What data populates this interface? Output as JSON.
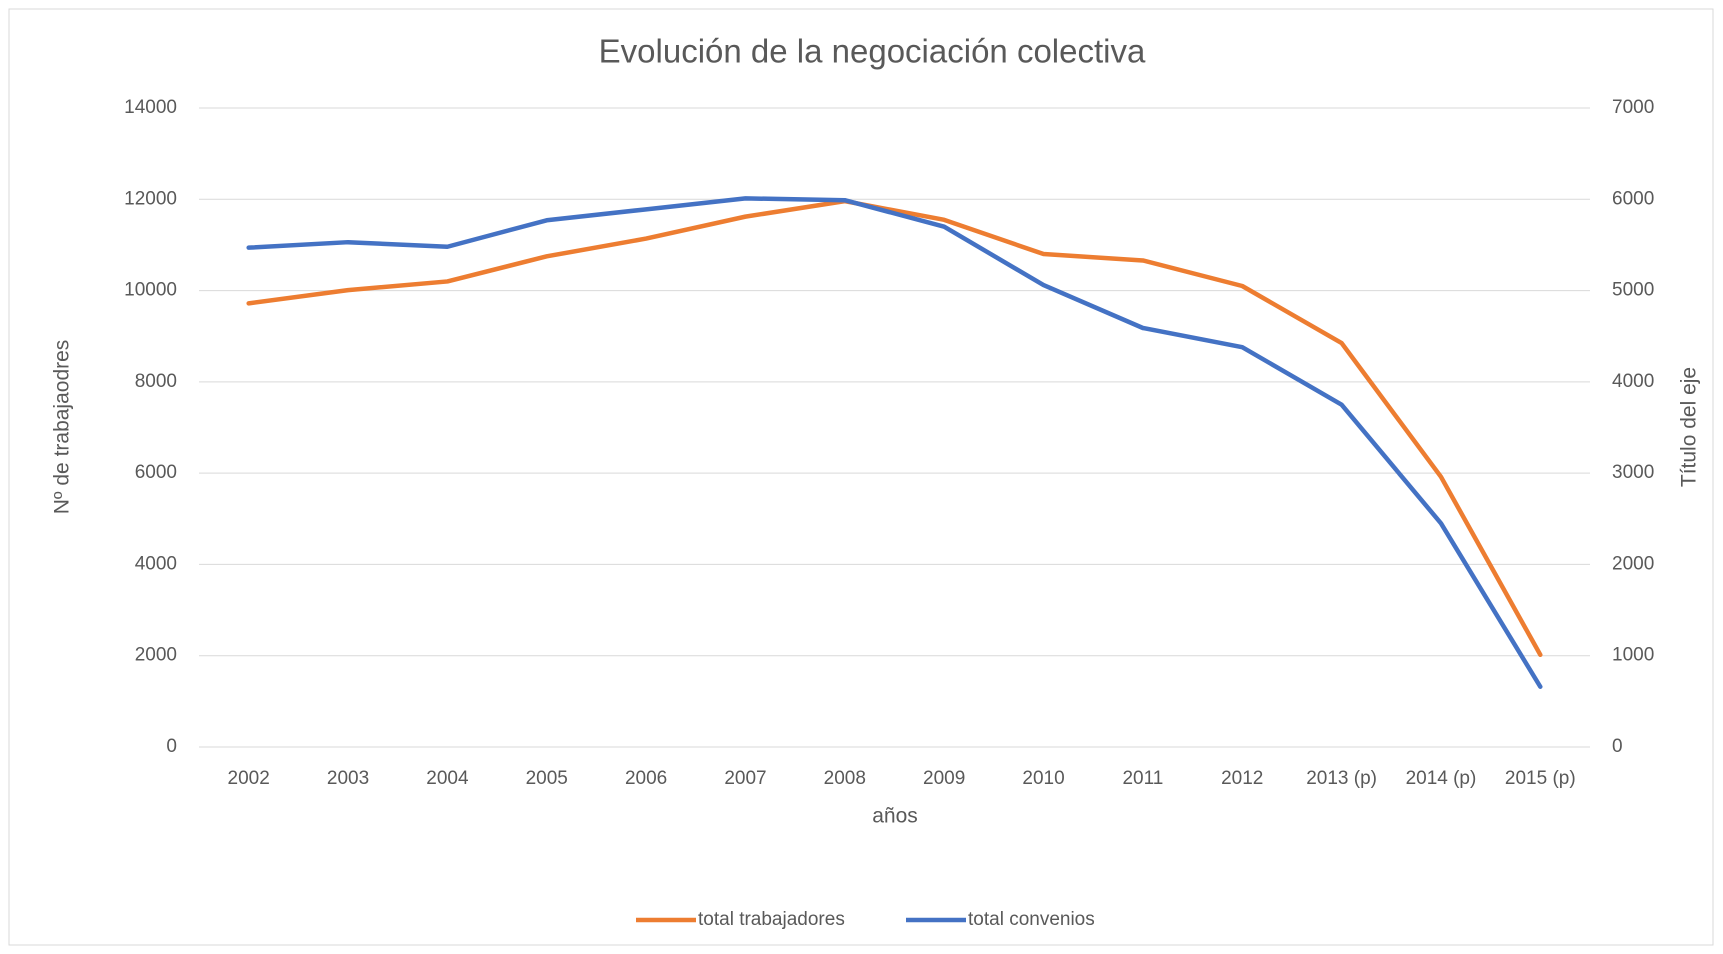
{
  "chart_data": {
    "type": "line",
    "title": "Evolución de la negociación colectiva",
    "x_label": "años",
    "y_label": "Nº de trabajaodres",
    "y2_label": "Título del eje",
    "categories": [
      "2002",
      "2003",
      "2004",
      "2005",
      "2006",
      "2007",
      "2008",
      "2009",
      "2010",
      "2011",
      "2012",
      "2013 (p)",
      "2014 (p)",
      "2015 (p)"
    ],
    "series": [
      {
        "name": "total trabajadores",
        "color": "#ed7d31",
        "values": [
          9720,
          10010,
          10200,
          10750,
          11140,
          11620,
          11960,
          11550,
          10800,
          10660,
          10100,
          8850,
          5920,
          2020
        ]
      },
      {
        "name": "total convenios",
        "color": "#4472c4",
        "axis": "y2",
        "values": [
          5470,
          5530,
          5480,
          5770,
          5890,
          6010,
          5990,
          5700,
          5060,
          4590,
          4380,
          3750,
          2450,
          660
        ]
      }
    ],
    "ylim": [
      0,
      14000
    ],
    "yticks": [
      0,
      2000,
      4000,
      6000,
      8000,
      10000,
      12000,
      14000
    ],
    "y2lim": [
      0,
      7000
    ],
    "y2ticks": [
      0,
      1000,
      2000,
      3000,
      4000,
      5000,
      6000,
      7000
    ],
    "grid": true,
    "legend": "bottom"
  }
}
